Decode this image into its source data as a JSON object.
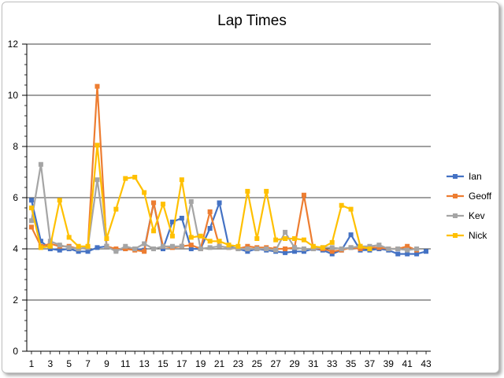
{
  "chart_data": {
    "type": "line",
    "title": "Lap Times",
    "xlabel": "",
    "ylabel": "",
    "ylim": [
      0,
      12
    ],
    "y_major_step": 2,
    "y_minor_step": 0.4,
    "x_tick_labels": [
      "1",
      "3",
      "5",
      "7",
      "9",
      "11",
      "13",
      "15",
      "17",
      "19",
      "21",
      "23",
      "25",
      "27",
      "29",
      "31",
      "33",
      "35",
      "37",
      "39",
      "41",
      "43"
    ],
    "legend_position": "right",
    "grid": "horizontal-major",
    "series": [
      {
        "name": "Ian",
        "color": "#4472C4",
        "x": [
          1,
          2,
          3,
          4,
          5,
          6,
          7,
          8,
          9,
          10,
          11,
          12,
          13,
          14,
          15,
          16,
          17,
          18,
          19,
          20,
          21,
          22,
          23,
          24,
          25,
          26,
          27,
          28,
          29,
          30,
          31,
          32,
          33,
          34,
          35,
          36,
          37,
          38,
          39,
          40,
          41,
          42,
          43
        ],
        "values": [
          5.9,
          4.3,
          4.0,
          3.95,
          4.0,
          3.9,
          3.9,
          4.05,
          4.1,
          3.95,
          4.0,
          4.0,
          3.95,
          5.8,
          4.0,
          5.05,
          5.2,
          4.0,
          4.0,
          4.8,
          5.8,
          4.1,
          4.0,
          3.9,
          4.0,
          3.95,
          3.9,
          3.85,
          3.9,
          3.9,
          4.0,
          3.95,
          3.8,
          3.95,
          4.55,
          3.95,
          3.95,
          4.0,
          3.95,
          3.8,
          3.8,
          3.8,
          3.9
        ]
      },
      {
        "name": "Geoff",
        "color": "#ED7D31",
        "x": [
          1,
          2,
          3,
          4,
          5,
          6,
          7,
          8,
          9,
          10,
          11,
          12,
          13,
          14,
          15,
          16,
          17,
          18,
          19,
          20,
          21,
          22,
          23,
          24,
          25,
          26,
          27,
          28,
          29,
          30,
          31,
          32,
          33,
          34,
          35,
          36,
          37,
          38,
          39,
          40,
          41,
          42
        ],
        "values": [
          4.85,
          4.1,
          4.2,
          4.1,
          4.1,
          4.0,
          4.05,
          10.35,
          4.1,
          4.0,
          4.0,
          3.95,
          3.9,
          5.8,
          4.1,
          4.05,
          4.1,
          4.15,
          4.0,
          5.45,
          4.1,
          4.05,
          4.0,
          4.1,
          4.05,
          4.05,
          4.0,
          4.0,
          4.05,
          6.1,
          4.0,
          4.0,
          3.9,
          3.95,
          4.05,
          4.0,
          4.05,
          4.05,
          4.0,
          4.0,
          4.1,
          3.95
        ]
      },
      {
        "name": "Kev",
        "color": "#A5A5A5",
        "x": [
          1,
          2,
          3,
          4,
          5,
          6,
          7,
          8,
          9,
          10,
          11,
          12,
          13,
          14,
          15,
          16,
          17,
          18,
          19,
          20,
          21,
          22,
          23,
          24,
          25,
          26,
          27,
          28,
          29,
          30,
          31,
          32,
          33,
          34,
          35,
          36,
          37,
          38,
          39,
          40,
          41,
          42
        ],
        "values": [
          5.1,
          7.3,
          4.3,
          4.15,
          4.05,
          4.0,
          4.05,
          6.7,
          4.1,
          3.9,
          4.1,
          4.0,
          4.2,
          4.0,
          4.1,
          4.1,
          4.1,
          5.85,
          4.0,
          4.05,
          4.1,
          4.05,
          4.0,
          4.0,
          4.0,
          4.0,
          3.95,
          4.65,
          4.05,
          4.0,
          4.0,
          4.05,
          4.05,
          4.0,
          4.05,
          4.1,
          4.1,
          4.15,
          4.0,
          4.0,
          3.95,
          4.0
        ]
      },
      {
        "name": "Nick",
        "color": "#FFC000",
        "x": [
          1,
          2,
          3,
          4,
          5,
          6,
          7,
          8,
          9,
          10,
          11,
          12,
          13,
          14,
          15,
          16,
          17,
          18,
          19,
          20,
          21,
          22,
          23,
          24,
          25,
          26,
          27,
          28,
          29,
          30,
          31,
          32,
          33,
          34,
          35,
          36,
          37
        ],
        "values": [
          5.6,
          4.05,
          4.1,
          5.9,
          4.45,
          4.1,
          4.1,
          8.05,
          4.4,
          5.55,
          6.75,
          6.8,
          6.2,
          4.7,
          5.75,
          4.5,
          6.7,
          4.45,
          4.5,
          4.3,
          4.3,
          4.15,
          4.1,
          6.25,
          4.4,
          6.25,
          4.35,
          4.4,
          4.4,
          4.35,
          4.1,
          4.05,
          4.25,
          5.7,
          5.55,
          4.1,
          4.0
        ]
      }
    ]
  }
}
